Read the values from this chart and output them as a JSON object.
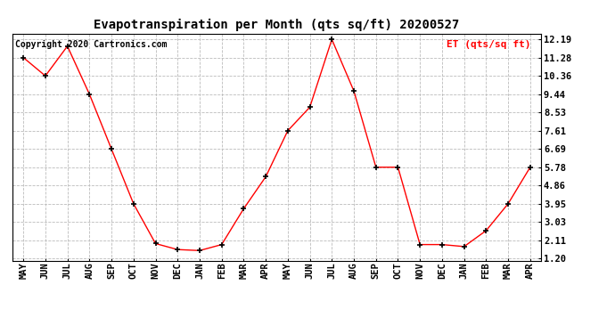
{
  "title": "Evapotranspiration per Month (qts sq/ft) 20200527",
  "copyright": "Copyright 2020 Cartronics.com",
  "legend_label": "ET (qts/sq ft)",
  "months": [
    "MAY",
    "JUN",
    "JUL",
    "AUG",
    "SEP",
    "OCT",
    "NOV",
    "DEC",
    "JAN",
    "FEB",
    "MAR",
    "APR",
    "MAY",
    "JUN",
    "JUL",
    "AUG",
    "SEP",
    "OCT",
    "NOV",
    "DEC",
    "JAN",
    "FEB",
    "MAR",
    "APR"
  ],
  "values": [
    11.28,
    10.36,
    11.85,
    9.44,
    6.69,
    3.95,
    1.95,
    1.65,
    1.6,
    1.9,
    3.7,
    5.3,
    7.61,
    8.79,
    12.19,
    9.6,
    5.78,
    5.78,
    1.9,
    1.9,
    1.8,
    2.6,
    3.95,
    5.78
  ],
  "yticks": [
    1.2,
    2.11,
    3.03,
    3.95,
    4.86,
    5.78,
    6.69,
    7.61,
    8.53,
    9.44,
    10.36,
    11.28,
    12.19
  ],
  "ymin": 1.2,
  "ymax": 12.19,
  "line_color": "red",
  "marker": "+",
  "marker_color": "black",
  "grid_color": "#bbbbbb",
  "background_color": "white",
  "title_fontsize": 10,
  "copyright_fontsize": 7,
  "legend_fontsize": 8,
  "tick_fontsize": 7.5
}
